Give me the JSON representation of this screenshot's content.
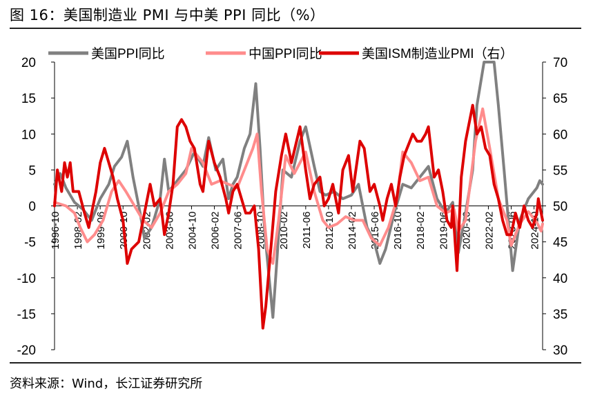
{
  "header": {
    "title": "图 16：美国制造业 PMI 与中美 PPI 同比（%）"
  },
  "footer": {
    "source": "资料来源：Wind，长江证券研究所"
  },
  "chart_data": {
    "type": "line",
    "title": "图 16：美国制造业 PMI 与中美 PPI 同比（%）",
    "xlabel": "",
    "ylabel": "",
    "x_start": "1996-10",
    "x_end": "2025-04",
    "x_tick_labels": [
      "1996-10",
      "1998-02",
      "1999-06",
      "2000-10",
      "2002-02",
      "2003-06",
      "2004-10",
      "2006-02",
      "2007-06",
      "2008-10",
      "2010-02",
      "2011-06",
      "2012-10",
      "2014-02",
      "2015-06",
      "2016-10",
      "2018-02",
      "2019-06",
      "2020-10",
      "2022-02",
      "2023-06",
      "2024-10"
    ],
    "y_left": {
      "min": -20,
      "max": 20,
      "ticks": [
        20,
        15,
        10,
        5,
        0,
        -5,
        -10,
        -15,
        -20
      ]
    },
    "y_right": {
      "min": 30,
      "max": 70,
      "ticks": [
        70,
        65,
        60,
        55,
        50,
        45,
        40,
        35,
        30
      ]
    },
    "legend_position": "top",
    "series": [
      {
        "name": "美国PPI同比",
        "axis": "left",
        "color": "#808080",
        "width": 4,
        "points": [
          [
            "1996-10",
            3
          ],
          [
            "1997-02",
            4.5
          ],
          [
            "1997-06",
            2.5
          ],
          [
            "1997-12",
            0.5
          ],
          [
            "1998-06",
            -0.5
          ],
          [
            "1998-12",
            -2
          ],
          [
            "1999-06",
            1
          ],
          [
            "1999-12",
            3
          ],
          [
            "2000-04",
            5.5
          ],
          [
            "2000-09",
            6.8
          ],
          [
            "2001-01",
            9
          ],
          [
            "2001-05",
            4
          ],
          [
            "2001-10",
            -1
          ],
          [
            "2002-01",
            -4.5
          ],
          [
            "2002-06",
            -3
          ],
          [
            "2002-12",
            1
          ],
          [
            "2003-03",
            6.5
          ],
          [
            "2003-06",
            2
          ],
          [
            "2003-12",
            3.5
          ],
          [
            "2004-06",
            5
          ],
          [
            "2004-12",
            7.5
          ],
          [
            "2005-06",
            5.5
          ],
          [
            "2005-10",
            9.5
          ],
          [
            "2006-03",
            5
          ],
          [
            "2006-08",
            6.5
          ],
          [
            "2006-12",
            1
          ],
          [
            "2007-03",
            3
          ],
          [
            "2007-06",
            4
          ],
          [
            "2007-11",
            8
          ],
          [
            "2008-03",
            10
          ],
          [
            "2008-07",
            17
          ],
          [
            "2008-10",
            8
          ],
          [
            "2009-01",
            -3
          ],
          [
            "2009-07",
            -15.5
          ],
          [
            "2009-10",
            -7
          ],
          [
            "2010-02",
            5
          ],
          [
            "2010-08",
            4
          ],
          [
            "2011-02",
            9
          ],
          [
            "2011-06",
            11
          ],
          [
            "2011-12",
            5.5
          ],
          [
            "2012-04",
            2
          ],
          [
            "2012-08",
            1.5
          ],
          [
            "2013-02",
            2
          ],
          [
            "2013-08",
            1
          ],
          [
            "2014-02",
            1.5
          ],
          [
            "2014-07",
            3
          ],
          [
            "2015-01",
            -3
          ],
          [
            "2015-06",
            -5
          ],
          [
            "2015-10",
            -8
          ],
          [
            "2016-02",
            -6
          ],
          [
            "2016-08",
            -1
          ],
          [
            "2017-02",
            3
          ],
          [
            "2017-08",
            2.5
          ],
          [
            "2018-02",
            4
          ],
          [
            "2018-08",
            5.5
          ],
          [
            "2019-02",
            1
          ],
          [
            "2019-08",
            -1
          ],
          [
            "2020-01",
            0.5
          ],
          [
            "2020-05",
            -6.5
          ],
          [
            "2020-10",
            -1
          ],
          [
            "2021-03",
            5
          ],
          [
            "2021-06",
            14
          ],
          [
            "2021-11",
            20
          ],
          [
            "2022-03",
            20
          ],
          [
            "2022-06",
            20
          ],
          [
            "2022-09",
            14
          ],
          [
            "2023-01",
            5
          ],
          [
            "2023-07",
            -9
          ],
          [
            "2023-12",
            -2
          ],
          [
            "2024-06",
            1
          ],
          [
            "2024-12",
            2.5
          ],
          [
            "2025-02",
            3.5
          ],
          [
            "2025-04",
            3
          ]
        ]
      },
      {
        "name": "中国PPI同比",
        "axis": "left",
        "color": "#ff8c8c",
        "width": 4,
        "points": [
          [
            "1996-10",
            0.5
          ],
          [
            "1997-06",
            0
          ],
          [
            "1997-12",
            -1
          ],
          [
            "1998-04",
            -3
          ],
          [
            "1998-09",
            -5
          ],
          [
            "1999-02",
            -4
          ],
          [
            "1999-08",
            -2
          ],
          [
            "2000-02",
            2
          ],
          [
            "2000-07",
            3.5
          ],
          [
            "2000-12",
            2
          ],
          [
            "2001-06",
            0
          ],
          [
            "2001-12",
            -2
          ],
          [
            "2002-06",
            -3
          ],
          [
            "2002-12",
            -1
          ],
          [
            "2003-06",
            2
          ],
          [
            "2003-12",
            3
          ],
          [
            "2004-06",
            4.5
          ],
          [
            "2004-10",
            8
          ],
          [
            "2005-06",
            6
          ],
          [
            "2005-12",
            3
          ],
          [
            "2006-06",
            3.5
          ],
          [
            "2006-12",
            3
          ],
          [
            "2007-06",
            2.5
          ],
          [
            "2007-12",
            5.5
          ],
          [
            "2008-05",
            8
          ],
          [
            "2008-08",
            10
          ],
          [
            "2008-11",
            2
          ],
          [
            "2009-03",
            -6
          ],
          [
            "2009-07",
            -8
          ],
          [
            "2009-11",
            -2
          ],
          [
            "2010-04",
            7
          ],
          [
            "2010-10",
            4.5
          ],
          [
            "2011-06",
            7.5
          ],
          [
            "2011-12",
            2
          ],
          [
            "2012-06",
            -2
          ],
          [
            "2012-10",
            -3
          ],
          [
            "2013-04",
            -2.5
          ],
          [
            "2013-10",
            -1.5
          ],
          [
            "2014-04",
            -2
          ],
          [
            "2014-10",
            -2
          ],
          [
            "2015-04",
            -4.5
          ],
          [
            "2015-10",
            -5.5
          ],
          [
            "2016-04",
            -3
          ],
          [
            "2016-10",
            1
          ],
          [
            "2017-02",
            7.5
          ],
          [
            "2017-08",
            6
          ],
          [
            "2018-02",
            3.5
          ],
          [
            "2018-08",
            4
          ],
          [
            "2019-02",
            0
          ],
          [
            "2019-08",
            -1
          ],
          [
            "2020-02",
            -0.5
          ],
          [
            "2020-05",
            -3.5
          ],
          [
            "2020-10",
            -2
          ],
          [
            "2021-05",
            9
          ],
          [
            "2021-10",
            13.5
          ],
          [
            "2022-03",
            8
          ],
          [
            "2022-09",
            1
          ],
          [
            "2023-03",
            -2
          ],
          [
            "2023-06",
            -5.5
          ],
          [
            "2023-12",
            -2.5
          ],
          [
            "2024-06",
            -0.8
          ],
          [
            "2024-12",
            -2.3
          ],
          [
            "2025-03",
            -3.5
          ],
          [
            "2025-04",
            -2.5
          ]
        ]
      },
      {
        "name": "美国ISM制造业PMI（右）",
        "axis": "right",
        "color": "#dd0000",
        "width": 4,
        "points": [
          [
            "1996-10",
            50
          ],
          [
            "1996-12",
            55
          ],
          [
            "1997-03",
            52
          ],
          [
            "1997-05",
            56
          ],
          [
            "1997-07",
            54
          ],
          [
            "1997-09",
            56
          ],
          [
            "1997-11",
            52
          ],
          [
            "1998-03",
            52
          ],
          [
            "1998-07",
            49
          ],
          [
            "1998-10",
            47
          ],
          [
            "1999-01",
            50
          ],
          [
            "1999-03",
            52
          ],
          [
            "1999-06",
            56
          ],
          [
            "1999-09",
            58
          ],
          [
            "1999-12",
            56
          ],
          [
            "2000-03",
            54
          ],
          [
            "2000-06",
            51
          ],
          [
            "2000-10",
            48
          ],
          [
            "2001-01",
            42
          ],
          [
            "2001-04",
            44
          ],
          [
            "2001-09",
            45
          ],
          [
            "2001-12",
            48
          ],
          [
            "2002-02",
            50
          ],
          [
            "2002-05",
            53
          ],
          [
            "2002-08",
            50
          ],
          [
            "2002-12",
            51
          ],
          [
            "2003-03",
            46
          ],
          [
            "2003-06",
            49
          ],
          [
            "2003-09",
            53
          ],
          [
            "2003-12",
            61
          ],
          [
            "2004-03",
            62
          ],
          [
            "2004-06",
            61
          ],
          [
            "2004-09",
            59
          ],
          [
            "2004-12",
            58
          ],
          [
            "2005-04",
            53
          ],
          [
            "2005-06",
            52
          ],
          [
            "2005-10",
            59
          ],
          [
            "2006-02",
            56
          ],
          [
            "2006-06",
            54
          ],
          [
            "2006-10",
            51
          ],
          [
            "2006-12",
            49
          ],
          [
            "2007-03",
            52
          ],
          [
            "2007-06",
            53
          ],
          [
            "2007-09",
            51
          ],
          [
            "2007-12",
            49
          ],
          [
            "2008-03",
            49
          ],
          [
            "2008-06",
            50
          ],
          [
            "2008-09",
            44
          ],
          [
            "2008-12",
            33
          ],
          [
            "2009-02",
            36
          ],
          [
            "2009-06",
            45
          ],
          [
            "2009-09",
            52
          ],
          [
            "2010-01",
            57
          ],
          [
            "2010-04",
            60
          ],
          [
            "2010-08",
            56
          ],
          [
            "2011-02",
            61
          ],
          [
            "2011-06",
            55
          ],
          [
            "2011-09",
            51
          ],
          [
            "2011-12",
            53
          ],
          [
            "2012-04",
            54
          ],
          [
            "2012-07",
            50
          ],
          [
            "2012-10",
            51
          ],
          [
            "2013-01",
            53
          ],
          [
            "2013-05",
            49
          ],
          [
            "2013-08",
            55
          ],
          [
            "2013-12",
            57
          ],
          [
            "2014-03",
            52
          ],
          [
            "2014-08",
            59
          ],
          [
            "2014-11",
            58
          ],
          [
            "2015-03",
            52
          ],
          [
            "2015-06",
            53
          ],
          [
            "2015-10",
            50
          ],
          [
            "2015-12",
            48
          ],
          [
            "2016-03",
            51
          ],
          [
            "2016-06",
            53
          ],
          [
            "2016-09",
            50
          ],
          [
            "2016-12",
            54
          ],
          [
            "2017-03",
            57
          ],
          [
            "2017-09",
            60
          ],
          [
            "2017-12",
            59
          ],
          [
            "2018-03",
            59
          ],
          [
            "2018-06",
            60
          ],
          [
            "2018-08",
            61
          ],
          [
            "2018-12",
            54
          ],
          [
            "2019-03",
            55
          ],
          [
            "2019-06",
            52
          ],
          [
            "2019-09",
            48
          ],
          [
            "2019-12",
            47
          ],
          [
            "2020-01",
            50
          ],
          [
            "2020-04",
            41
          ],
          [
            "2020-07",
            54
          ],
          [
            "2020-10",
            59
          ],
          [
            "2021-03",
            64
          ],
          [
            "2021-06",
            60
          ],
          [
            "2021-09",
            61
          ],
          [
            "2021-12",
            58
          ],
          [
            "2022-03",
            57
          ],
          [
            "2022-06",
            53
          ],
          [
            "2022-09",
            51
          ],
          [
            "2022-12",
            48
          ],
          [
            "2023-03",
            46
          ],
          [
            "2023-06",
            46
          ],
          [
            "2023-09",
            49
          ],
          [
            "2023-12",
            47
          ],
          [
            "2024-03",
            50
          ],
          [
            "2024-06",
            48
          ],
          [
            "2024-09",
            47
          ],
          [
            "2024-12",
            49
          ],
          [
            "2025-01",
            51
          ],
          [
            "2025-03",
            49
          ],
          [
            "2025-04",
            48
          ]
        ]
      }
    ]
  }
}
